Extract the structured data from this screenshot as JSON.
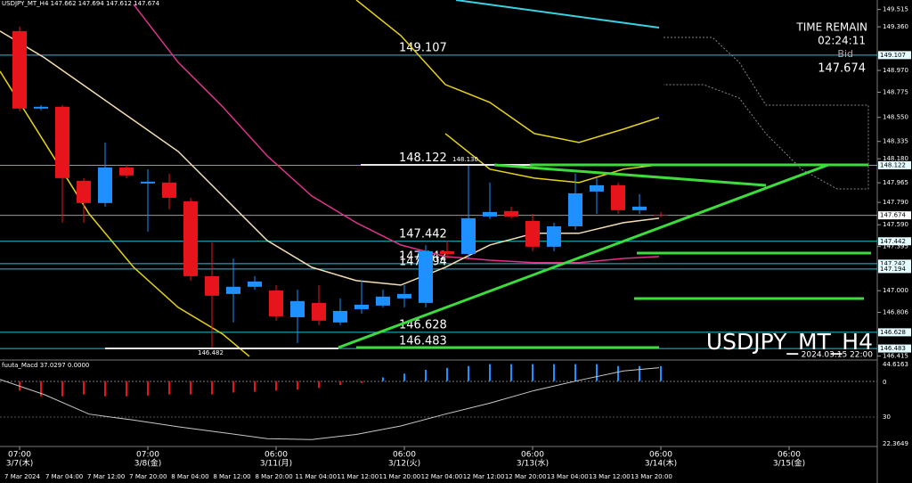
{
  "header": "USDJPY_MT_H4 147.662 147.694 147.612 147.674",
  "info": {
    "time_remain_label": "TIME REMAIN",
    "time_remain": "02:24:11",
    "bid_label": "Bid"
  },
  "symbol_label": "USDJPY_MT_H4",
  "bar_time": "2024.03.15 22:00",
  "annotations": [
    "148.130",
    "146.482"
  ],
  "chart_data": [
    {
      "type": "candlestick",
      "ylim": [
        146.38,
        149.6
      ],
      "yticks": [
        149.515,
        {
          "value": 149.36,
          "label": "149.360"
        },
        {
          "value": 148.97,
          "label": "148.970"
        },
        148.775,
        {
          "value": 148.55,
          "label": "148.550"
        },
        148.335,
        {
          "value": 148.18,
          "label": "148.180"
        },
        147.965,
        {
          "value": 147.79,
          "label": "147.790"
        },
        {
          "value": 147.59,
          "label": "147.590"
        },
        147.395,
        {
          "value": 147.0,
          "label": "147.000"
        },
        146.806,
        146.415
      ],
      "up_color": "#1e90ff",
      "down_color": "#e8141c",
      "open": [
        149.322,
        148.629,
        148.645,
        147.983,
        147.784,
        148.102,
        147.959,
        147.967,
        147.8,
        147.13,
        146.971,
        147.035,
        147.002,
        146.763,
        146.891,
        146.716,
        146.835,
        146.867,
        146.931,
        146.891,
        147.353,
        147.329,
        147.664,
        147.712,
        147.624,
        147.393,
        147.576,
        147.887,
        147.943,
        147.72,
        147.68
      ],
      "high": [
        149.362,
        148.66,
        148.66,
        148.007,
        148.326,
        148.126,
        148.087,
        148.047,
        147.831,
        147.433,
        147.289,
        147.13,
        147.05,
        147.01,
        147.05,
        146.931,
        147.09,
        147.01,
        147.05,
        147.409,
        147.449,
        148.126,
        147.967,
        147.752,
        147.688,
        147.608,
        148.047,
        148.007,
        147.967,
        147.863,
        147.704
      ],
      "low": [
        148.605,
        148.613,
        147.608,
        147.608,
        147.752,
        148.007,
        147.529,
        147.728,
        147.09,
        146.492,
        146.716,
        147.01,
        146.732,
        146.532,
        146.692,
        146.692,
        146.795,
        146.851,
        146.851,
        146.851,
        147.289,
        147.289,
        147.64,
        147.648,
        147.353,
        147.353,
        147.545,
        147.688,
        147.688,
        147.688,
        147.656
      ],
      "close": [
        148.629,
        148.645,
        148.007,
        147.784,
        148.102,
        148.031,
        147.975,
        147.831,
        147.13,
        146.955,
        147.035,
        147.082,
        146.771,
        146.907,
        146.732,
        146.819,
        146.875,
        146.947,
        146.971,
        147.353,
        147.329,
        147.648,
        147.704,
        147.664,
        147.393,
        147.576,
        147.871,
        147.943,
        147.72,
        147.752,
        147.674
      ],
      "series": [
        {
          "color": "#e0338b",
          "x": [
            5.333,
            7.417,
            9.5,
            11.583,
            13.667,
            15.75,
            17.833,
            19.917,
            22,
            24.083,
            26.167,
            28.25,
            29.917
          ],
          "values": [
            149.561,
            149.043,
            148.645,
            148.206,
            147.847,
            147.608,
            147.409,
            147.305,
            147.273,
            147.25,
            147.25,
            147.289,
            147.305
          ]
        },
        {
          "color": "#f5deb3",
          "x": [
            -0.917,
            1.167,
            3.25,
            5.333,
            7.417,
            9.5,
            11.583,
            13.667,
            15.75,
            17.833,
            19.917,
            22,
            24.083,
            26.167,
            28.25,
            29.917
          ],
          "values": [
            149.322,
            149.083,
            148.804,
            148.525,
            148.246,
            147.847,
            147.449,
            147.21,
            147.09,
            147.05,
            147.21,
            147.409,
            147.513,
            147.513,
            147.608,
            147.648
          ]
        },
        {
          "color": "#e6d21e",
          "x": [
            15.75,
            17.833,
            19.917,
            22,
            24.083,
            26.167,
            28.25,
            29.917
          ],
          "values": [
            149.601,
            149.282,
            148.844,
            148.684,
            148.405,
            148.326,
            148.445,
            148.549
          ]
        },
        {
          "color": "#e6d21e",
          "x": [
            19.917,
            22,
            24.083,
            26.167,
            28.25,
            29.917
          ],
          "values": [
            148.405,
            148.087,
            148.007,
            147.967,
            148.087,
            148.126
          ]
        },
        {
          "color": "#e6d21e",
          "x": [
            -0.917,
            1.167,
            3.25,
            5.333,
            7.417,
            9.5,
            10.75
          ],
          "values": [
            148.963,
            148.326,
            147.688,
            147.21,
            146.851,
            146.612,
            146.413
          ]
        }
      ],
      "levels": [
        149.107,
        148.122,
        147.442,
        147.242,
        147.194,
        146.628,
        146.483
      ],
      "level_color": "#22c4d4",
      "bid_line": 147.674,
      "bid_color": "#9a9a9a"
    },
    {
      "type": "bar",
      "title": "fuuta_Macd 37.0297 0.0000",
      "ylim": [
        -170,
        53.5
      ],
      "axis_labels": [
        "44.6163",
        "0",
        "30",
        "22.3649"
      ],
      "up_color": "#1e90ff",
      "down_color": "#e8141c",
      "values": [
        -25,
        -40,
        -40,
        -35,
        -40,
        -40,
        -38,
        -35,
        -35,
        -35,
        -30,
        -28,
        -25,
        -22,
        -18,
        -10,
        -5,
        10,
        20,
        30,
        35,
        40,
        45,
        45,
        45,
        45,
        45,
        45,
        40,
        40,
        40
      ],
      "signal": {
        "color": "#c8c8c8",
        "x": [
          -0.917,
          1.167,
          3.25,
          5.333,
          7.417,
          9.5,
          11.583,
          13.667,
          15.75,
          17.833,
          19.917,
          22,
          24.083,
          26.167,
          28.25,
          29.917
        ],
        "values": [
          4.5,
          -35.7,
          -87,
          -102.6,
          -120.4,
          -136,
          -151.6,
          -153.9,
          -140.5,
          -118.2,
          -87,
          -58,
          -24.5,
          2.2,
          26.8,
          35.7
        ]
      }
    }
  ],
  "time_axis": {
    "major": [
      [
        "07:00",
        "3/7(木)"
      ],
      [
        "07:00",
        "3/8(金)"
      ],
      [
        "06:00",
        "3/11(月)"
      ],
      [
        "06:00",
        "3/12(火)"
      ],
      [
        "06:00",
        "3/13(水)"
      ],
      [
        "06:00",
        "3/14(木)"
      ],
      [
        "06:00",
        "3/15(金)"
      ]
    ],
    "minor": [
      "7 Mar 2024",
      "7 Mar 04:00",
      "7 Mar 12:00",
      "7 Mar 20:00",
      "8 Mar 04:00",
      "8 Mar 12:00",
      "8 Mar 20:00",
      "11 Mar 04:00",
      "11 Mar 12:00",
      "11 Mar 20:00",
      "12 Mar 04:00",
      "12 Mar 12:00",
      "12 Mar 20:00",
      "13 Mar 04:00",
      "13 Mar 12:00",
      "13 Mar 20:00"
    ]
  }
}
